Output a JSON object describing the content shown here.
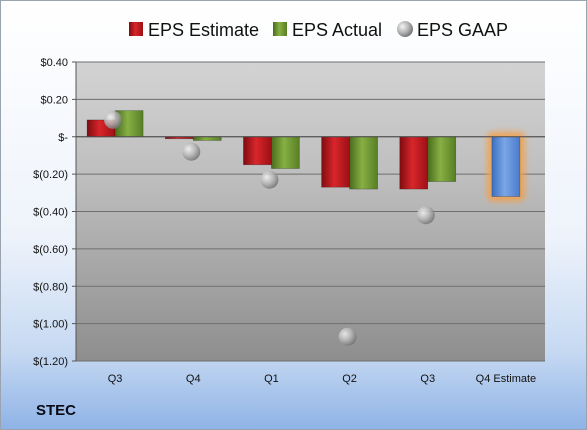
{
  "company": "STEC",
  "legend": [
    {
      "label": "EPS Estimate",
      "icon": "red-bar-icon"
    },
    {
      "label": "EPS Actual",
      "icon": "green-bar-icon"
    },
    {
      "label": "EPS GAAP",
      "icon": "gray-sphere-icon"
    }
  ],
  "colors": {
    "estimate": "#c0171d",
    "actual": "#6f9a30",
    "gaap": "#a6a6a6",
    "future_estimate": "#5b8fd8",
    "future_glow": "#f4a04a"
  },
  "chart_data": {
    "type": "bar",
    "categories": [
      "Q3",
      "Q4",
      "Q1",
      "Q2",
      "Q3",
      "Q4 Estimate"
    ],
    "series": [
      {
        "name": "EPS Estimate",
        "values": [
          0.09,
          -0.01,
          -0.15,
          -0.27,
          -0.28,
          -0.32
        ]
      },
      {
        "name": "EPS Actual",
        "values": [
          0.14,
          -0.02,
          -0.17,
          -0.28,
          -0.24,
          null
        ]
      },
      {
        "name": "EPS GAAP",
        "values": [
          0.09,
          -0.08,
          -0.23,
          -1.07,
          -0.42,
          null
        ]
      }
    ],
    "yticks": [
      0.4,
      0.2,
      0,
      -0.2,
      -0.4,
      -0.6,
      -0.8,
      -1.0,
      -1.2
    ],
    "ytick_labels": [
      "$0.40",
      "$0.20",
      "$-",
      "$(0.20)",
      "$(0.40)",
      "$(0.60)",
      "$(0.80)",
      "$(1.00)",
      "$(1.20)"
    ],
    "ylim": [
      -1.2,
      0.4
    ],
    "grid": true,
    "legend_position": "top"
  }
}
